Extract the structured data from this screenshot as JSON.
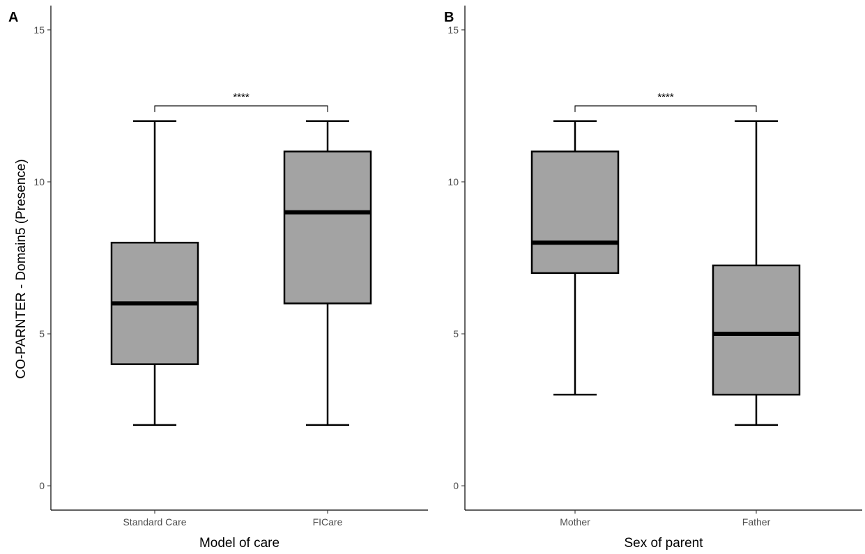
{
  "figure": {
    "y_axis_label": "CO-PARNTER - Domain5 (Presence)"
  },
  "colors": {
    "box_fill": "#a3a3a3",
    "line": "#000000",
    "tick_text": "#4d4d4d"
  },
  "chart_data": [
    {
      "type": "boxplot",
      "panel_label": "A",
      "xlabel": "Model of care",
      "ylabel": "CO-PARNTER - Domain5 (Presence)",
      "ylim": [
        -0.8,
        15.8
      ],
      "yticks": [
        0,
        5,
        10,
        15
      ],
      "ytick_labels": [
        "0",
        "5",
        "10",
        "15"
      ],
      "grid": false,
      "categories": [
        "Standard Care",
        "FICare"
      ],
      "boxes": [
        {
          "category": "Standard Care",
          "min": 2,
          "q1": 4,
          "median": 6,
          "q3": 8,
          "max": 12
        },
        {
          "category": "FICare",
          "min": 2,
          "q1": 6,
          "median": 9,
          "q3": 11,
          "max": 12
        }
      ],
      "significance": {
        "from": "Standard Care",
        "to": "FICare",
        "y": 12.5,
        "label": "****"
      }
    },
    {
      "type": "boxplot",
      "panel_label": "B",
      "xlabel": "Sex of parent",
      "ylabel": "",
      "ylim": [
        -0.8,
        15.8
      ],
      "yticks": [
        0,
        5,
        10,
        15
      ],
      "ytick_labels": [
        "0",
        "5",
        "10",
        "15"
      ],
      "grid": false,
      "categories": [
        "Mother",
        "Father"
      ],
      "boxes": [
        {
          "category": "Mother",
          "min": 3,
          "q1": 7,
          "median": 8,
          "q3": 11,
          "max": 12
        },
        {
          "category": "Father",
          "min": 2,
          "q1": 3,
          "median": 5,
          "q3": 7.25,
          "max": 12
        }
      ],
      "significance": {
        "from": "Mother",
        "to": "Father",
        "y": 12.5,
        "label": "****"
      }
    }
  ]
}
